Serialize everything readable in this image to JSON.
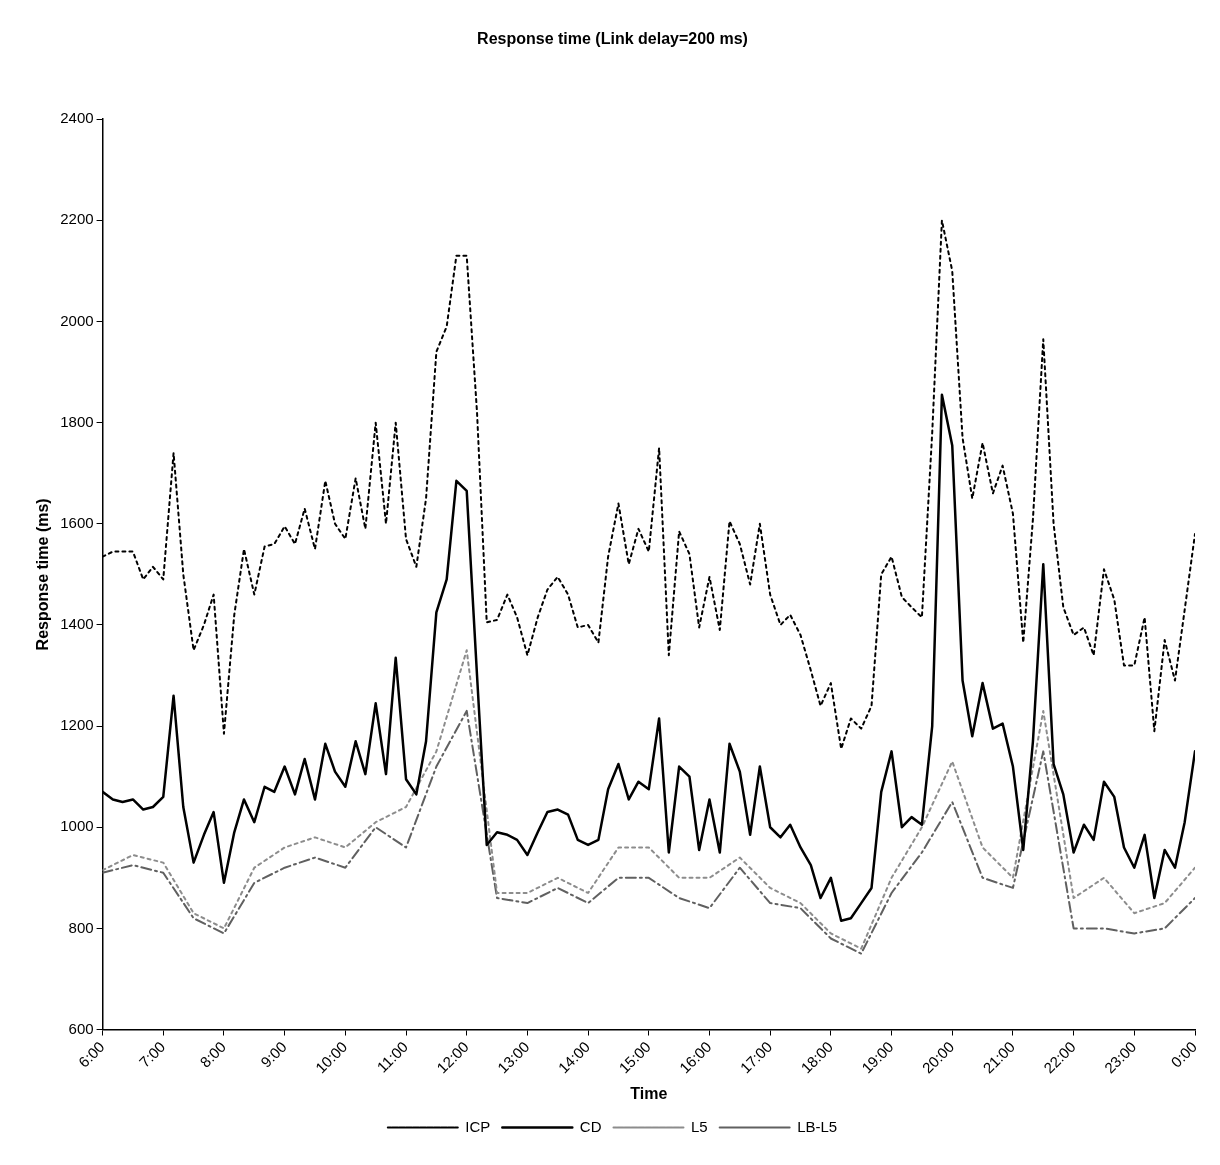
{
  "chart_data": {
    "type": "line",
    "title": "Response time (Link delay=200 ms)",
    "xlabel": "Time",
    "ylabel": "Response time (ms)",
    "x": [
      6,
      6.17,
      6.33,
      6.5,
      6.67,
      6.83,
      7,
      7.17,
      7.33,
      7.5,
      7.67,
      7.83,
      8,
      8.17,
      8.33,
      8.5,
      8.67,
      8.83,
      9,
      9.17,
      9.33,
      9.5,
      9.67,
      9.83,
      10,
      10.17,
      10.33,
      10.5,
      10.67,
      10.83,
      11,
      11.17,
      11.33,
      11.5,
      11.67,
      11.83,
      12,
      12.17,
      12.33,
      12.5,
      12.67,
      12.83,
      13,
      13.17,
      13.33,
      13.5,
      13.67,
      13.83,
      14,
      14.17,
      14.33,
      14.5,
      14.67,
      14.83,
      15,
      15.17,
      15.33,
      15.5,
      15.67,
      15.83,
      16,
      16.17,
      16.33,
      16.5,
      16.67,
      16.83,
      17,
      17.17,
      17.33,
      17.5,
      17.67,
      17.83,
      18,
      18.17,
      18.33,
      18.5,
      18.67,
      18.83,
      19,
      19.17,
      19.33,
      19.5,
      19.67,
      19.83,
      20,
      20.17,
      20.33,
      20.5,
      20.67,
      20.83,
      21,
      21.17,
      21.33,
      21.5,
      21.67,
      21.83,
      22,
      22.17,
      22.33,
      22.5,
      22.67,
      22.83,
      23,
      23.17,
      23.33,
      23.5,
      23.67,
      23.83,
      24
    ],
    "series": [
      {
        "name": "ICP",
        "color": "#000000",
        "line_style": "dotted",
        "values": [
          1535,
          1545,
          1545,
          1545,
          1490,
          1515,
          1490,
          1740,
          1500,
          1350,
          1400,
          1460,
          1185,
          1420,
          1550,
          1460,
          1555,
          1560,
          1595,
          1560,
          1630,
          1550,
          1685,
          1600,
          1570,
          1690,
          1590,
          1800,
          1600,
          1800,
          1570,
          1515,
          1650,
          1940,
          1990,
          2130,
          2130,
          1820,
          1405,
          1410,
          1460,
          1415,
          1340,
          1415,
          1470,
          1495,
          1460,
          1395,
          1400,
          1365,
          1535,
          1640,
          1520,
          1590,
          1545,
          1750,
          1340,
          1585,
          1540,
          1395,
          1495,
          1390,
          1605,
          1560,
          1480,
          1600,
          1460,
          1400,
          1420,
          1380,
          1310,
          1240,
          1285,
          1155,
          1215,
          1195,
          1240,
          1500,
          1535,
          1455,
          1435,
          1415,
          1780,
          2200,
          2100,
          1770,
          1650,
          1760,
          1660,
          1715,
          1620,
          1365,
          1610,
          1965,
          1600,
          1435,
          1380,
          1395,
          1340,
          1510,
          1450,
          1320,
          1320,
          1415,
          1190,
          1370,
          1290,
          1430,
          1580
        ]
      },
      {
        "name": "CD",
        "color": "#000000",
        "line_style": "solid",
        "values": [
          1070,
          1055,
          1050,
          1055,
          1035,
          1040,
          1060,
          1260,
          1040,
          930,
          985,
          1030,
          890,
          990,
          1055,
          1010,
          1080,
          1070,
          1120,
          1065,
          1135,
          1055,
          1165,
          1110,
          1080,
          1170,
          1105,
          1245,
          1105,
          1335,
          1095,
          1065,
          1170,
          1425,
          1490,
          1685,
          1665,
          1300,
          965,
          990,
          985,
          975,
          945,
          990,
          1030,
          1035,
          1025,
          975,
          965,
          975,
          1075,
          1125,
          1055,
          1090,
          1075,
          1215,
          950,
          1120,
          1100,
          955,
          1055,
          950,
          1165,
          1110,
          985,
          1120,
          1000,
          980,
          1005,
          960,
          925,
          860,
          900,
          815,
          820,
          850,
          880,
          1070,
          1150,
          1000,
          1020,
          1005,
          1200,
          1855,
          1755,
          1290,
          1180,
          1285,
          1195,
          1205,
          1120,
          955,
          1170,
          1520,
          1125,
          1065,
          950,
          1005,
          975,
          1090,
          1060,
          960,
          920,
          985,
          860,
          955,
          920,
          1010,
          1150
        ]
      },
      {
        "name": "L5",
        "color": "#8c8c8c",
        "line_style": "dotted",
        "x": [
          6,
          6.5,
          7,
          7.5,
          8,
          8.5,
          9,
          9.5,
          10,
          10.5,
          11,
          11.5,
          12,
          12.5,
          13,
          13.5,
          14,
          14.5,
          15,
          15.5,
          16,
          16.5,
          17,
          17.5,
          18,
          18.5,
          19,
          19.5,
          20,
          20.5,
          21,
          21.5,
          22,
          22.5,
          23,
          23.5,
          24
        ],
        "values": [
          915,
          945,
          930,
          830,
          800,
          920,
          960,
          980,
          960,
          1010,
          1040,
          1150,
          1350,
          870,
          870,
          900,
          870,
          960,
          960,
          900,
          900,
          940,
          880,
          850,
          790,
          760,
          900,
          1000,
          1130,
          960,
          900,
          1230,
          860,
          900,
          830,
          850,
          920
        ]
      },
      {
        "name": "LB-L5",
        "color": "#606060",
        "line_style": "dashed",
        "x": [
          6,
          6.5,
          7,
          7.5,
          8,
          8.5,
          9,
          9.5,
          10,
          10.5,
          11,
          11.5,
          12,
          12.5,
          13,
          13.5,
          14,
          14.5,
          15,
          15.5,
          16,
          16.5,
          17,
          17.5,
          18,
          18.5,
          19,
          19.5,
          20,
          20.5,
          21,
          21.5,
          22,
          22.5,
          23,
          23.5,
          24
        ],
        "values": [
          910,
          925,
          910,
          820,
          790,
          890,
          920,
          940,
          920,
          1000,
          960,
          1120,
          1230,
          860,
          850,
          880,
          850,
          900,
          900,
          860,
          840,
          920,
          850,
          840,
          780,
          750,
          870,
          950,
          1050,
          900,
          880,
          1150,
          800,
          800,
          790,
          800,
          860
        ]
      }
    ],
    "xlim": [
      6,
      24
    ],
    "xticks": [
      {
        "value": 6,
        "label": "6:00"
      },
      {
        "value": 7,
        "label": "7:00"
      },
      {
        "value": 8,
        "label": "8:00"
      },
      {
        "value": 9,
        "label": "9:00"
      },
      {
        "value": 10,
        "label": "10:00"
      },
      {
        "value": 11,
        "label": "11:00"
      },
      {
        "value": 12,
        "label": "12:00"
      },
      {
        "value": 13,
        "label": "13:00"
      },
      {
        "value": 14,
        "label": "14:00"
      },
      {
        "value": 15,
        "label": "15:00"
      },
      {
        "value": 16,
        "label": "16:00"
      },
      {
        "value": 17,
        "label": "17:00"
      },
      {
        "value": 18,
        "label": "18:00"
      },
      {
        "value": 19,
        "label": "19:00"
      },
      {
        "value": 20,
        "label": "20:00"
      },
      {
        "value": 21,
        "label": "21:00"
      },
      {
        "value": 22,
        "label": "22:00"
      },
      {
        "value": 23,
        "label": "23:00"
      },
      {
        "value": 24,
        "label": "0:00"
      }
    ],
    "ylim": [
      600,
      2400
    ],
    "yticks": [
      600,
      800,
      1000,
      1200,
      1400,
      1600,
      1800,
      2000,
      2200,
      2400
    ],
    "grid": false,
    "legend": "bottom",
    "marker": "none"
  }
}
